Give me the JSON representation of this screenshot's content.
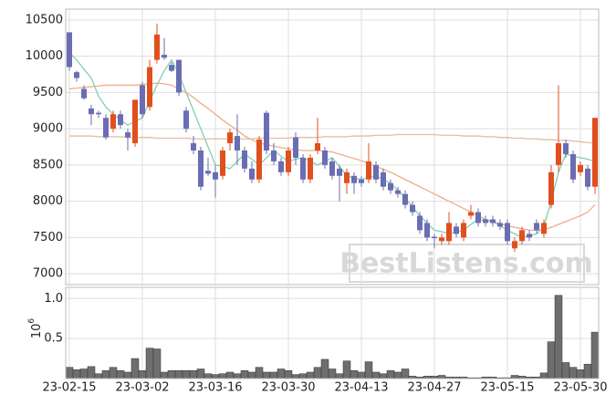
{
  "chart_data": [
    {
      "type": "candlestick",
      "up_color": "#e0501e",
      "down_color": "#6a6db3",
      "open": [
        10330,
        9780,
        9550,
        9280,
        9220,
        9150,
        9000,
        9200,
        8950,
        8800,
        9600,
        9300,
        9950,
        10020,
        9880,
        9950,
        9250,
        8800,
        8700,
        8420,
        8400,
        8350,
        8800,
        8900,
        8700,
        8450,
        8300,
        9220,
        8700,
        8550,
        8400,
        8880,
        8600,
        8300,
        8700,
        8700,
        8550,
        8450,
        8250,
        8350,
        8300,
        8300,
        8500,
        8400,
        8250,
        8150,
        8100,
        7950,
        7800,
        7700,
        7510,
        7450,
        7450,
        7650,
        7500,
        7800,
        7850,
        7750,
        7750,
        7700,
        7700,
        7350,
        7450,
        7550,
        7700,
        7550,
        7950,
        8500,
        8800,
        8650,
        8400,
        8450,
        8200
      ],
      "high": [
        10330,
        9800,
        9600,
        9330,
        9250,
        9200,
        9250,
        9250,
        9000,
        9400,
        9650,
        9950,
        10450,
        10250,
        9920,
        9950,
        9300,
        8900,
        8750,
        8600,
        8500,
        8750,
        9000,
        9200,
        8750,
        8550,
        8900,
        9250,
        8800,
        8600,
        8750,
        8950,
        8650,
        8650,
        9150,
        8750,
        8600,
        8500,
        8450,
        8400,
        8350,
        8800,
        8550,
        8450,
        8300,
        8200,
        8150,
        8000,
        7850,
        7750,
        7550,
        7550,
        7850,
        7700,
        7750,
        7950,
        7900,
        7800,
        7800,
        7750,
        7750,
        7500,
        7650,
        7600,
        7750,
        7750,
        8500,
        9600,
        8850,
        8700,
        8550,
        8500,
        9150
      ],
      "low": [
        9800,
        9650,
        9400,
        9050,
        9150,
        8850,
        8950,
        9000,
        8700,
        8750,
        9150,
        9250,
        9900,
        9950,
        9780,
        9450,
        8950,
        8650,
        8150,
        8350,
        8050,
        8300,
        8700,
        8500,
        8400,
        8250,
        8250,
        8650,
        8500,
        8350,
        8350,
        8500,
        8250,
        8250,
        8650,
        8450,
        8300,
        8000,
        8100,
        8100,
        8200,
        8250,
        8250,
        8150,
        8100,
        8050,
        7900,
        7800,
        7550,
        7450,
        7350,
        7400,
        7400,
        7500,
        7450,
        7750,
        7650,
        7650,
        7650,
        7600,
        7400,
        7300,
        7400,
        7450,
        7550,
        7500,
        7900,
        8400,
        8600,
        8250,
        8350,
        8150,
        8100
      ],
      "close": [
        9850,
        9700,
        9420,
        9200,
        9200,
        8880,
        9200,
        9050,
        8880,
        9400,
        9200,
        9850,
        10300,
        9980,
        9800,
        9500,
        9000,
        8700,
        8200,
        8380,
        8300,
        8700,
        8950,
        8700,
        8450,
        8300,
        8850,
        8700,
        8550,
        8400,
        8700,
        8600,
        8300,
        8600,
        8800,
        8500,
        8350,
        8350,
        8400,
        8250,
        8250,
        8550,
        8300,
        8200,
        8150,
        8100,
        7950,
        7850,
        7600,
        7500,
        7490,
        7500,
        7700,
        7550,
        7700,
        7850,
        7700,
        7700,
        7700,
        7650,
        7450,
        7450,
        7600,
        7500,
        7600,
        7700,
        8400,
        8800,
        8650,
        8300,
        8500,
        8200,
        9150
      ],
      "series": [
        {
          "color": "#80cfb2",
          "values": [
            10050,
            9950,
            9820,
            9700,
            9450,
            9300,
            9200,
            9120,
            9050,
            9100,
            9150,
            9380,
            9600,
            9800,
            9950,
            9750,
            9500,
            9250,
            9000,
            8750,
            8500,
            8480,
            8450,
            8550,
            8650,
            8580,
            8500,
            8600,
            8700,
            8620,
            8550,
            8580,
            8600,
            8550,
            8500,
            8550,
            8600,
            8480,
            8350,
            8320,
            8300,
            8330,
            8350,
            8300,
            8250,
            8150,
            8050,
            7920,
            7800,
            7700,
            7600,
            7580,
            7550,
            7580,
            7600,
            7680,
            7750,
            7730,
            7720,
            7660,
            7600,
            7550,
            7500,
            7520,
            7550,
            7650,
            8000,
            8400,
            8650,
            8620,
            8600,
            8580,
            8550
          ]
        },
        {
          "color": "#f0ac8c",
          "values": [
            9550,
            9560,
            9570,
            9580,
            9590,
            9600,
            9600,
            9600,
            9600,
            9600,
            9610,
            9620,
            9630,
            9620,
            9600,
            9550,
            9500,
            9430,
            9350,
            9280,
            9200,
            9120,
            9050,
            8980,
            8900,
            8850,
            8800,
            8780,
            8760,
            8740,
            8720,
            8710,
            8700,
            8700,
            8700,
            8690,
            8680,
            8650,
            8620,
            8590,
            8560,
            8520,
            8480,
            8440,
            8400,
            8350,
            8300,
            8250,
            8200,
            8150,
            8100,
            8050,
            8000,
            7950,
            7900,
            7850,
            7800,
            7750,
            7720,
            7690,
            7660,
            7640,
            7620,
            7600,
            7600,
            7610,
            7640,
            7680,
            7720,
            7760,
            7800,
            7850,
            7950
          ]
        },
        {
          "color": "#e2bca2",
          "values": [
            8900,
            8900,
            8900,
            8900,
            8890,
            8890,
            8890,
            8890,
            8880,
            8880,
            8880,
            8880,
            8870,
            8870,
            8870,
            8870,
            8870,
            8860,
            8860,
            8860,
            8860,
            8860,
            8860,
            8860,
            8860,
            8860,
            8870,
            8870,
            8870,
            8870,
            8870,
            8880,
            8880,
            8880,
            8880,
            8890,
            8890,
            8890,
            8890,
            8900,
            8900,
            8900,
            8910,
            8910,
            8910,
            8920,
            8920,
            8920,
            8920,
            8920,
            8920,
            8910,
            8910,
            8910,
            8900,
            8900,
            8900,
            8890,
            8890,
            8880,
            8880,
            8870,
            8870,
            8860,
            8860,
            8850,
            8850,
            8840,
            8840,
            8830,
            8820,
            8810,
            8800
          ]
        }
      ],
      "ylim": [
        6850,
        10650
      ],
      "yticks": [
        7000,
        7500,
        8000,
        8500,
        9000,
        9500,
        10000,
        10500
      ],
      "grid": true,
      "watermark": "BestListens.com"
    },
    {
      "type": "bar",
      "categories": [
        "23-02-15",
        null,
        null,
        null,
        null,
        null,
        null,
        null,
        null,
        null,
        "23-03-02",
        null,
        null,
        null,
        null,
        null,
        null,
        null,
        null,
        null,
        "23-03-16",
        null,
        null,
        null,
        null,
        null,
        null,
        null,
        null,
        null,
        "23-03-30",
        null,
        null,
        null,
        null,
        null,
        null,
        null,
        null,
        null,
        "23-04-13",
        null,
        null,
        null,
        null,
        null,
        null,
        null,
        null,
        null,
        "23-04-27",
        null,
        null,
        null,
        null,
        null,
        null,
        null,
        null,
        null,
        "23-05-15",
        null,
        null,
        null,
        null,
        null,
        null,
        null,
        null,
        null,
        "23-05-30",
        null,
        null
      ],
      "values": [
        0.14,
        0.11,
        0.12,
        0.15,
        0.06,
        0.1,
        0.14,
        0.1,
        0.08,
        0.25,
        0.1,
        0.38,
        0.37,
        0.08,
        0.1,
        0.1,
        0.1,
        0.1,
        0.12,
        0.06,
        0.05,
        0.06,
        0.08,
        0.06,
        0.1,
        0.08,
        0.14,
        0.08,
        0.08,
        0.12,
        0.1,
        0.05,
        0.06,
        0.08,
        0.14,
        0.24,
        0.12,
        0.06,
        0.22,
        0.1,
        0.08,
        0.21,
        0.08,
        0.06,
        0.1,
        0.08,
        0.12,
        0.03,
        0.02,
        0.03,
        0.03,
        0.04,
        0.02,
        0.02,
        0.02,
        0.01,
        0.01,
        0.02,
        0.02,
        0.01,
        0.01,
        0.04,
        0.03,
        0.02,
        0.02,
        0.07,
        0.46,
        1.04,
        0.2,
        0.14,
        0.11,
        0.18,
        0.58
      ],
      "color": "#6e6e6e",
      "ylim": [
        0,
        1.14
      ],
      "yticks": [
        0.5,
        {
          "value": 1,
          "label": "1.0"
        }
      ],
      "scale_label": {
        "base": "10",
        "exponent": "6"
      },
      "grid": true
    }
  ]
}
